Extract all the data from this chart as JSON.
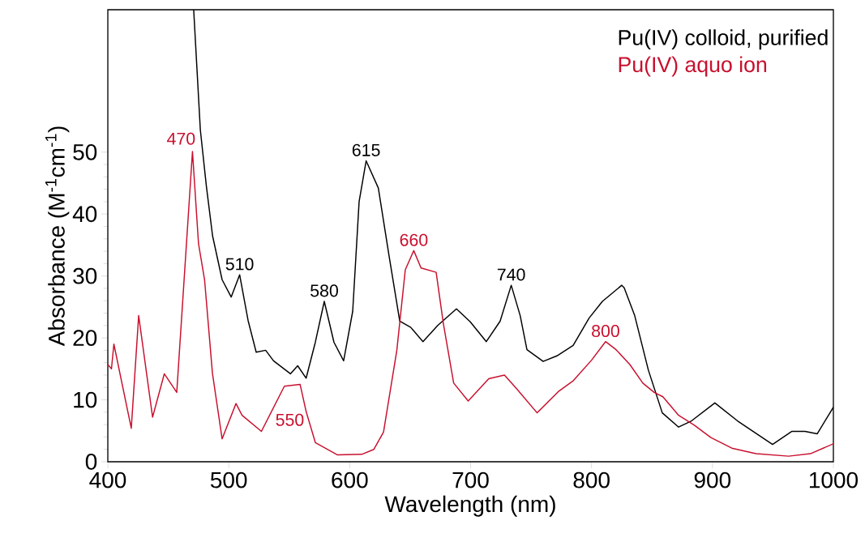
{
  "chart_data": {
    "type": "line",
    "xlabel": "Wavelength (nm)",
    "ylabel": "Absorbance (M$^{-1}$cm$^{-1}$)",
    "xlim": [
      400,
      1000
    ],
    "ylim": [
      0,
      73
    ],
    "xticks": [
      400,
      500,
      600,
      700,
      800,
      900,
      1000
    ],
    "yticks": [
      0,
      10,
      20,
      30,
      40,
      50
    ],
    "legend": "top right",
    "grid": false,
    "marker": "none",
    "line_style": "solid",
    "series": [
      {
        "name": "Pu(IV) colloid, purified",
        "color": "#000000",
        "x": [
          471,
          476.5,
          481.5,
          486.6,
          494.5,
          502,
          509,
          516,
          522.7,
          530.5,
          537,
          551,
          557,
          564,
          571.6,
          579,
          587,
          595,
          602.5,
          607.8,
          613.6,
          623.7,
          632.6,
          641.4,
          650.5,
          660.6,
          672.8,
          688.3,
          699.7,
          713,
          724.4,
          733.6,
          741,
          746.6,
          760,
          771.4,
          784.8,
          798,
          809,
          825,
          827,
          835.7,
          847,
          858.5,
          872,
          882.7,
          902,
          920.7,
          949.7,
          965.5,
          976.5,
          986.6,
          1000
        ],
        "values": [
          73,
          53.6,
          44.5,
          36.5,
          29.4,
          26.6,
          30.2,
          22.8,
          17.7,
          18.0,
          16.3,
          14.2,
          15.5,
          13.5,
          19.3,
          25.9,
          19.3,
          16.3,
          24.3,
          42,
          48.6,
          44.2,
          33.2,
          22.7,
          21.7,
          19.4,
          22.0,
          24.7,
          22.6,
          19.4,
          22.7,
          28.5,
          23.6,
          18.1,
          16.2,
          17.1,
          18.8,
          23.2,
          25.9,
          28.5,
          28.1,
          23.6,
          14.8,
          7.9,
          5.6,
          6.6,
          9.5,
          6.6,
          2.8,
          4.9,
          4.9,
          4.5,
          8.8
        ]
      },
      {
        "name": "Pu(IV) aquo ion",
        "color": "#c8102e",
        "x": [
          400,
          403,
          405,
          419.4,
          425.5,
          437,
          446.7,
          457,
          470,
          475,
          480,
          486.5,
          494.5,
          506,
          511,
          527,
          546,
          559,
          564,
          571.6,
          590,
          610,
          620,
          628,
          639,
          646,
          653,
          659,
          671.5,
          677.5,
          686,
          698,
          715,
          728,
          738,
          755,
          773,
          785,
          800,
          811.6,
          820.3,
          831.7,
          842.4,
          851.8,
          859,
          872,
          885,
          898.7,
          916,
          936,
          963,
          981,
          1000
        ],
        "values": [
          15.7,
          15,
          19.0,
          5.4,
          23.6,
          7.2,
          14.2,
          11.2,
          50.1,
          35.2,
          29.4,
          14.3,
          3.7,
          9.4,
          7.5,
          4.9,
          12.2,
          12.5,
          8.1,
          3.1,
          1.1,
          1.2,
          2,
          4.8,
          18,
          31,
          34.1,
          31.3,
          30.6,
          22.3,
          12.7,
          9.8,
          13.4,
          14,
          11.8,
          7.9,
          11.4,
          13.1,
          16.4,
          19.4,
          18.1,
          15.7,
          12.7,
          11.2,
          10.5,
          7.5,
          5.9,
          3.9,
          2.2,
          1.3,
          0.9,
          1.3,
          2.9
        ]
      }
    ],
    "annotations": [
      {
        "text": "470",
        "x": 470,
        "y": 50.1
      },
      {
        "text": "510",
        "x": 509,
        "y": 30.2
      },
      {
        "text": "550",
        "x": 559,
        "y": 12.5
      },
      {
        "text": "580",
        "x": 579,
        "y": 25.9
      },
      {
        "text": "615",
        "x": 613.6,
        "y": 48.6
      },
      {
        "text": "660",
        "x": 653,
        "y": 34.1
      },
      {
        "text": "740",
        "x": 733.6,
        "y": 28.5
      },
      {
        "text": "800",
        "x": 811.6,
        "y": 19.4
      }
    ]
  }
}
